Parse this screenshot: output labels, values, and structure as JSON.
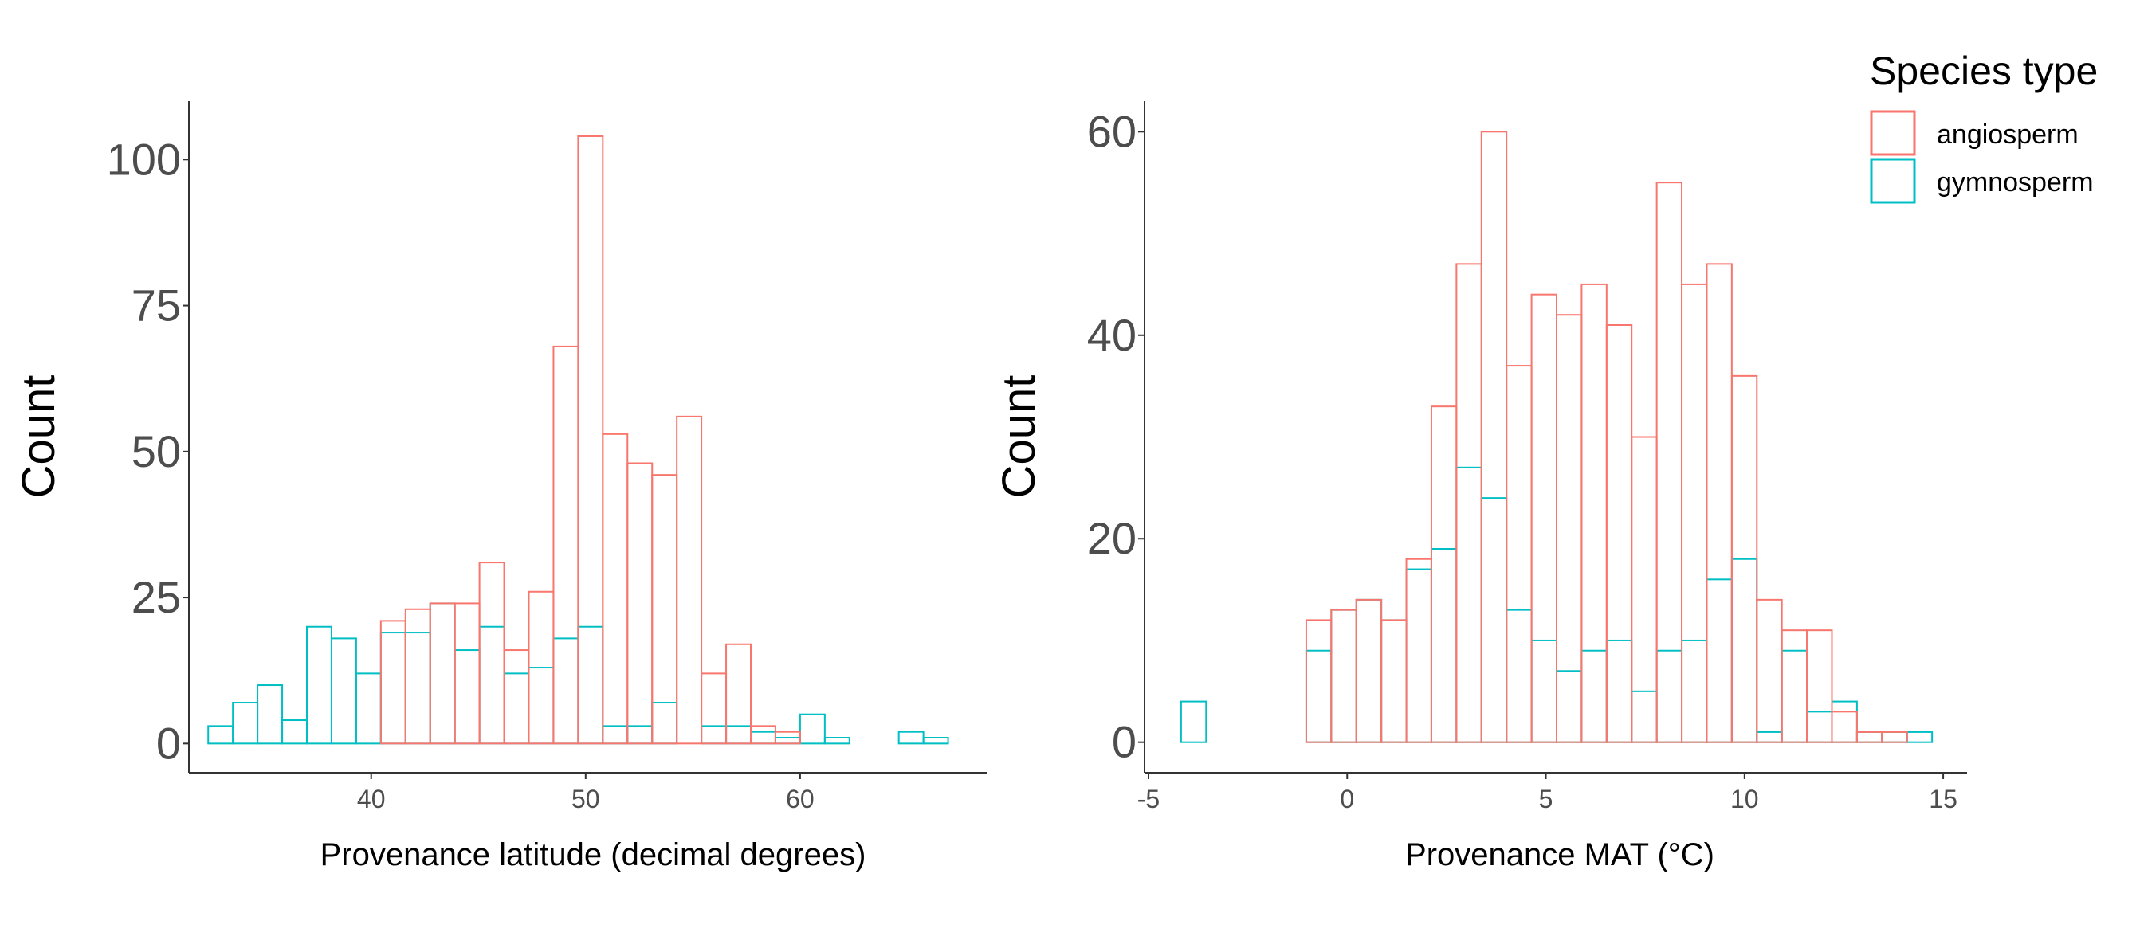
{
  "colors": {
    "angiosperm": "#F8766D",
    "gymnosperm": "#00BFC4",
    "axis": "#333333",
    "tick_text": "#4d4d4d"
  },
  "legend": {
    "title": "Species type",
    "entries": [
      {
        "name": "angiosperm",
        "color": "#F8766D"
      },
      {
        "name": "gymnosperm",
        "color": "#00BFC4"
      }
    ]
  },
  "chart_data": [
    {
      "type": "histogram",
      "xlabel": "Provenance latitude (decimal degrees)",
      "ylabel": "Count",
      "xlim": [
        31.5,
        68.7
      ],
      "ylim": [
        -5,
        110
      ],
      "xticks": [
        40,
        50,
        60
      ],
      "yticks": [
        0,
        25,
        50,
        75,
        100
      ],
      "bin_start": 32.4,
      "bin_width": 1.15,
      "series": [
        {
          "name": "angiosperm",
          "color": "#F8766D",
          "values": [
            0,
            0,
            0,
            0,
            0,
            0,
            0,
            21,
            23,
            24,
            24,
            31,
            16,
            26,
            68,
            104,
            53,
            48,
            46,
            56,
            12,
            17,
            3,
            2,
            0,
            0,
            0,
            0,
            0,
            0
          ]
        },
        {
          "name": "gymnosperm",
          "color": "#00BFC4",
          "values": [
            3,
            7,
            10,
            4,
            20,
            18,
            12,
            19,
            19,
            24,
            16,
            20,
            12,
            13,
            18,
            20,
            3,
            3,
            7,
            0,
            3,
            3,
            2,
            1,
            5,
            1,
            0,
            0,
            2,
            1
          ]
        }
      ]
    },
    {
      "type": "histogram",
      "xlabel": "Provenance MAT (°C)",
      "ylabel": "Count",
      "xlim": [
        -5.1,
        15.6
      ],
      "ylim": [
        -3,
        63
      ],
      "xticks": [
        -5,
        0,
        5,
        10,
        15
      ],
      "yticks": [
        0,
        20,
        40,
        60
      ],
      "bin_start": -4.18,
      "bin_width": 0.63,
      "series": [
        {
          "name": "angiosperm",
          "color": "#F8766D",
          "values": [
            0,
            0,
            0,
            0,
            0,
            12,
            13,
            14,
            12,
            18,
            33,
            47,
            60,
            37,
            44,
            42,
            45,
            41,
            30,
            55,
            45,
            47,
            36,
            14,
            11,
            11,
            3,
            1,
            1,
            0
          ]
        },
        {
          "name": "gymnosperm",
          "color": "#00BFC4",
          "values": [
            4,
            0,
            0,
            0,
            0,
            9,
            13,
            14,
            12,
            17,
            19,
            27,
            24,
            13,
            10,
            7,
            9,
            10,
            5,
            9,
            10,
            16,
            18,
            1,
            9,
            3,
            4,
            1,
            1,
            1
          ]
        }
      ]
    }
  ]
}
